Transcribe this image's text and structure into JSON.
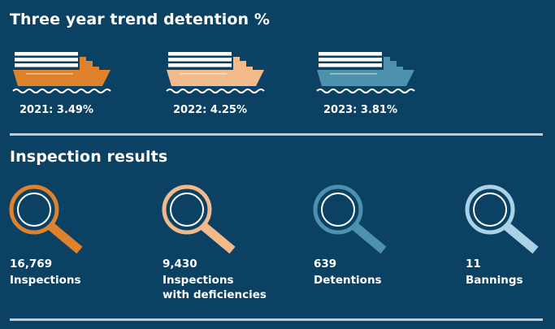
{
  "section_trend": {
    "title": "Three year trend detention %",
    "items": [
      {
        "label": "2021: 3.49%",
        "color": "#e0822b"
      },
      {
        "label": "2022: 4.25%",
        "color": "#f2b98a"
      },
      {
        "label": "2023: 3.81%",
        "color": "#4c91ad"
      }
    ]
  },
  "section_inspection": {
    "title": "Inspection results",
    "items": [
      {
        "value": "16,769",
        "label": "Inspections",
        "color": "#e0822b"
      },
      {
        "value": "9,430",
        "label": "Inspections",
        "label2": "with deficiencies",
        "color": "#f2b98a"
      },
      {
        "value": "639",
        "label": "Detentions",
        "color": "#4c91ad"
      },
      {
        "value": "11",
        "label": "Bannings",
        "color": "#a9d2e6"
      }
    ]
  }
}
